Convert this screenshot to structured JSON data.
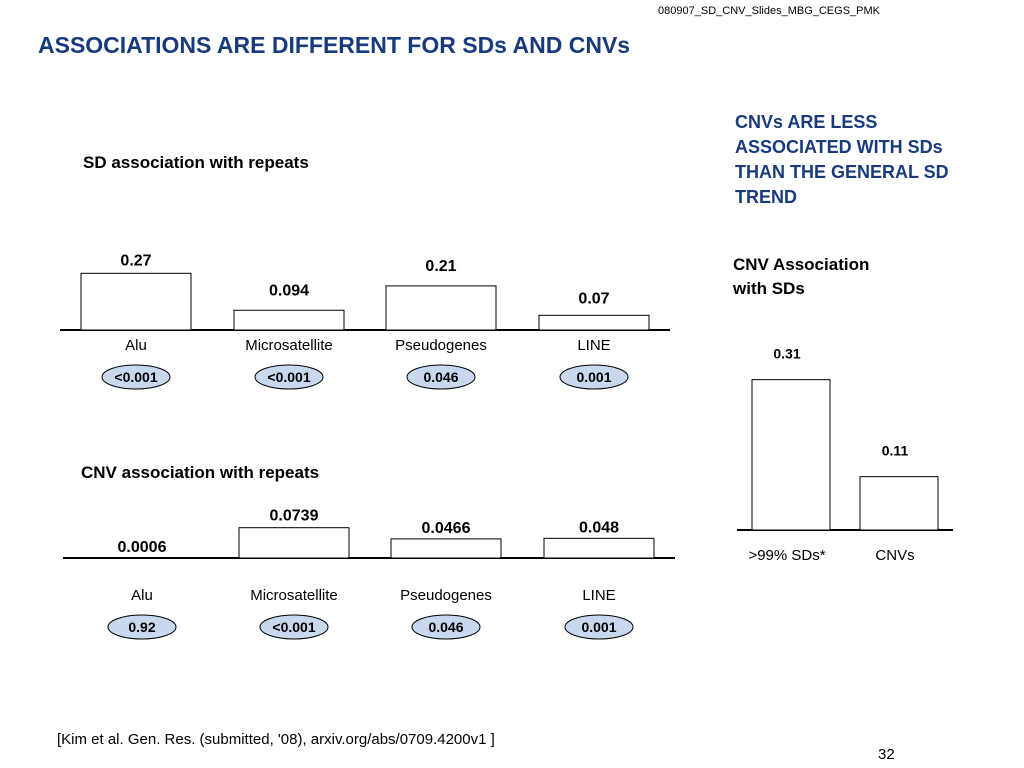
{
  "slide": {
    "doc_id": "080907_SD_CNV_Slides_MBG_CEGS_PMK",
    "title": "ASSOCIATIONS ARE DIFFERENT FOR SDs AND CNVs",
    "note": "CNVs ARE LESS ASSOCIATED WITH SDs THAN THE GENERAL SD TREND",
    "citation": "[Kim et al. Gen. Res. (submitted, '08), arxiv.org/abs/0709.4200v1 ]",
    "page_number": "32",
    "colors": {
      "title": "#173b7d",
      "ellipse_fill": "#c7d8ef",
      "bar_fill": "#ffffff"
    }
  },
  "chart_data": [
    {
      "type": "bar",
      "title": "SD association with repeats",
      "categories": [
        "Alu",
        "Microsatellite",
        "Pseudogenes",
        "LINE"
      ],
      "values": [
        0.27,
        0.094,
        0.21,
        0.07
      ],
      "value_labels": [
        "0.27",
        "0.094",
        "0.21",
        "0.07"
      ],
      "pvalues": [
        "<0.001",
        "<0.001",
        "0.046",
        "0.001"
      ]
    },
    {
      "type": "bar",
      "title": "CNV association with repeats",
      "categories": [
        "Alu",
        "Microsatellite",
        "Pseudogenes",
        "LINE"
      ],
      "values": [
        0.0006,
        0.0739,
        0.0466,
        0.048
      ],
      "value_labels": [
        "0.0006",
        "0.0739",
        "0.0466",
        "0.048"
      ],
      "pvalues": [
        "0.92",
        "<0.001",
        "0.046",
        "0.001"
      ]
    },
    {
      "type": "bar",
      "title": "CNV Association with SDs",
      "categories": [
        ">99% SDs*",
        "CNVs"
      ],
      "values": [
        0.31,
        0.11
      ],
      "value_labels": [
        "0.31",
        "0.11"
      ]
    }
  ]
}
